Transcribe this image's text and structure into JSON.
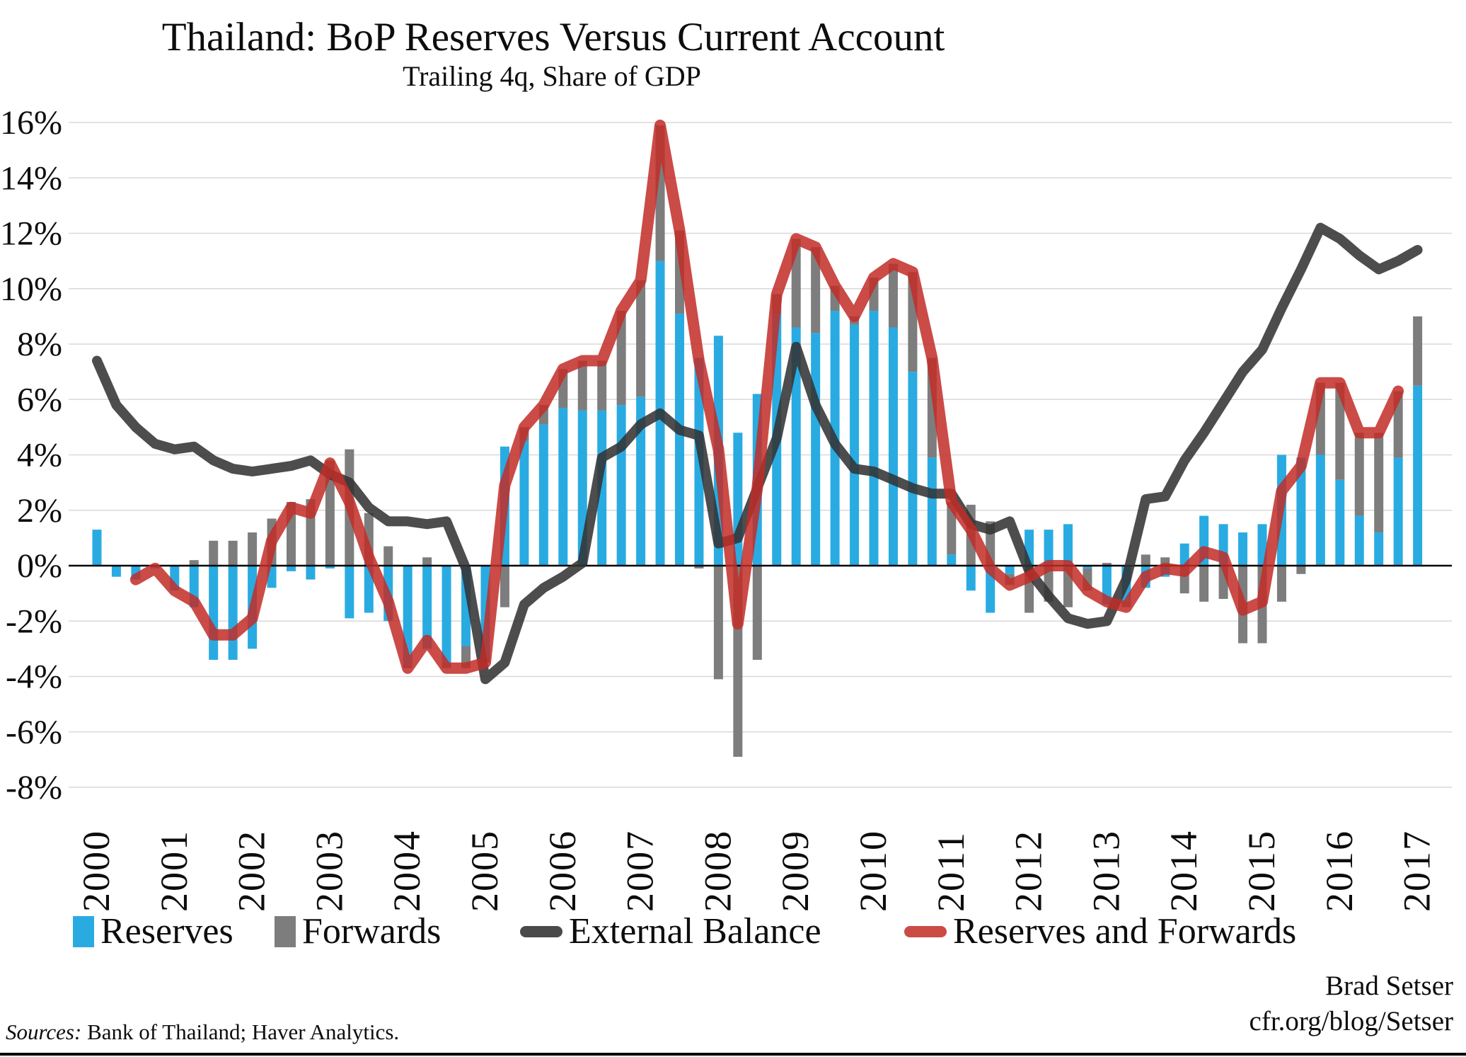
{
  "title": "Thailand: BoP Reserves Versus Current Account",
  "subtitle": "Trailing 4q, Share of GDP",
  "legend": {
    "items": [
      {
        "label": "Reserves",
        "type": "bar",
        "color": "#29ABE2"
      },
      {
        "label": "Forwards",
        "type": "bar",
        "color": "#7D7D7D"
      },
      {
        "label": "External Balance",
        "type": "line",
        "color": "#4A4A4A"
      },
      {
        "label": "Reserves and Forwards",
        "type": "line",
        "color": "#CB4B45"
      }
    ]
  },
  "footer": {
    "sources_label": "Sources:",
    "sources_text": " Bank of Thailand; Haver Analytics.",
    "credit_line1": "Brad Setser",
    "credit_line2": "cfr.org/blog/Setser"
  },
  "chart_data": {
    "type": "bar",
    "subtype": "stacked-columns-with-lines",
    "title": "Thailand: BoP Reserves Versus Current Account",
    "xlabel": "",
    "ylabel": "",
    "ylim": [
      -8,
      16
    ],
    "y_tick_step": 2,
    "y_tick_labels": [
      "16%",
      "14%",
      "12%",
      "10%",
      "8%",
      "6%",
      "4%",
      "2%",
      "0%",
      "-2%",
      "-4%",
      "-6%",
      "-8%"
    ],
    "x_tick_labels": [
      "2000",
      "2001",
      "2002",
      "2003",
      "2004",
      "2005",
      "2006",
      "2007",
      "2008",
      "2009",
      "2010",
      "2011",
      "2012",
      "2013",
      "2014",
      "2015",
      "2016",
      "2017"
    ],
    "x_frequency": "quarterly",
    "grid": "horizontal",
    "legend_position": "bottom",
    "colors": {
      "reserves": "#29ABE2",
      "forwards": "#7D7D7D",
      "external_balance": "#323232",
      "reserves_and_forwards": "#C22C27",
      "gridline": "#D9D9D9",
      "zero_axis": "#000000"
    },
    "series": [
      {
        "name": "Reserves",
        "type": "bar",
        "values": [
          1.3,
          -0.4,
          -0.5,
          -0.1,
          -0.9,
          -1.5,
          -3.4,
          -3.4,
          -3.0,
          -0.8,
          -0.2,
          -0.5,
          -0.1,
          -1.9,
          -1.7,
          -2.0,
          -3.6,
          -3.0,
          -3.5,
          -2.9,
          -3.3,
          4.3,
          4.5,
          5.1,
          5.7,
          5.6,
          5.6,
          5.8,
          6.1,
          11.0,
          9.1,
          7.5,
          8.3,
          4.8,
          6.2,
          9.1,
          8.6,
          8.4,
          9.2,
          8.7,
          9.2,
          8.6,
          7.0,
          3.9,
          0.4,
          -0.9,
          -1.7,
          -0.3,
          1.3,
          1.3,
          1.5,
          -0.1,
          -1.4,
          -1.3,
          -0.8,
          -0.4,
          0.8,
          1.8,
          1.5,
          1.2,
          1.5,
          4.0,
          3.9,
          4.0,
          3.1,
          1.8,
          1.2,
          3.9,
          6.5
        ]
      },
      {
        "name": "Forwards",
        "type": "bar",
        "stacked_on": "Reserves",
        "values": [
          0,
          0,
          0,
          0,
          0,
          0.2,
          0.9,
          0.9,
          1.2,
          1.7,
          2.3,
          2.4,
          3.8,
          4.2,
          1.9,
          0.7,
          -0.1,
          0.3,
          -0.2,
          -0.8,
          -0.2,
          -1.5,
          0.5,
          0.7,
          1.4,
          1.8,
          1.8,
          3.4,
          4.2,
          4.9,
          3.0,
          -0.1,
          -4.1,
          -6.9,
          -3.4,
          0.7,
          3.2,
          3.1,
          0.9,
          0.3,
          1.2,
          2.3,
          3.6,
          3.6,
          1.9,
          2.2,
          1.6,
          -0.4,
          -1.7,
          -1.3,
          -1.5,
          -0.8,
          0.1,
          -0.2,
          0.4,
          0.3,
          -1.0,
          -1.3,
          -1.2,
          -2.8,
          -2.8,
          -1.3,
          -0.3,
          2.6,
          3.5,
          3.0,
          3.6,
          2.4,
          2.5
        ]
      },
      {
        "name": "External Balance",
        "type": "line",
        "values": [
          7.4,
          5.8,
          5.0,
          4.4,
          4.2,
          4.3,
          3.8,
          3.5,
          3.4,
          3.5,
          3.6,
          3.8,
          3.3,
          3.0,
          2.1,
          1.6,
          1.6,
          1.5,
          1.6,
          -0.1,
          -4.1,
          -3.5,
          -1.4,
          -0.8,
          -0.4,
          0.1,
          3.9,
          4.3,
          5.1,
          5.5,
          4.9,
          4.7,
          0.8,
          1.0,
          2.8,
          4.6,
          7.9,
          5.8,
          4.4,
          3.5,
          3.4,
          3.1,
          2.8,
          2.6,
          2.6,
          1.5,
          1.3,
          1.6,
          -0.2,
          -1.1,
          -1.9,
          -2.1,
          -2.0,
          -0.5,
          2.4,
          2.5,
          3.8,
          4.8,
          5.9,
          7.0,
          7.8,
          9.3,
          10.7,
          12.2,
          11.8,
          11.2,
          10.7,
          11.0,
          11.4
        ]
      },
      {
        "name": "Reserves and Forwards",
        "type": "line",
        "values": [
          null,
          null,
          -0.5,
          -0.1,
          -0.9,
          -1.3,
          -2.5,
          -2.5,
          -1.9,
          0.9,
          2.1,
          1.9,
          3.7,
          2.3,
          0.3,
          -1.3,
          -3.7,
          -2.7,
          -3.7,
          -3.7,
          -3.5,
          2.9,
          5.0,
          5.8,
          7.1,
          7.4,
          7.4,
          9.2,
          10.3,
          15.9,
          12.1,
          7.4,
          4.2,
          -2.1,
          2.8,
          9.8,
          11.8,
          11.5,
          10.1,
          9.0,
          10.4,
          10.9,
          10.6,
          7.5,
          2.3,
          1.3,
          -0.1,
          -0.7,
          -0.4,
          0.0,
          0.0,
          -0.9,
          -1.3,
          -1.5,
          -0.4,
          -0.1,
          -0.2,
          0.5,
          0.3,
          -1.6,
          -1.3,
          2.7,
          3.6,
          6.6,
          6.6,
          4.8,
          4.8,
          6.3,
          null
        ]
      }
    ]
  }
}
